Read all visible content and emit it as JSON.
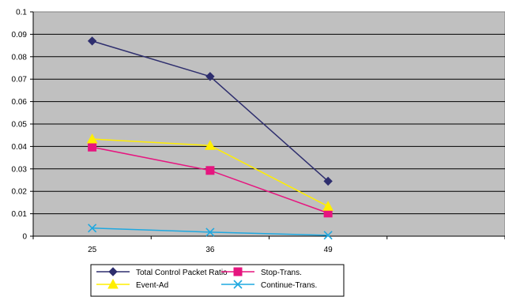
{
  "chart_data": {
    "type": "line",
    "categories": [
      "25",
      "36",
      "49"
    ],
    "ylim": [
      0,
      0.1
    ],
    "yticks": [
      "0",
      "0.01",
      "0.02",
      "0.03",
      "0.04",
      "0.05",
      "0.06",
      "0.07",
      "0.08",
      "0.09",
      "0.1"
    ],
    "grid": "horizontal",
    "plot_background": "#c0c0c0",
    "legend_position": "bottom",
    "series": [
      {
        "name": "Total Control Packet Ratio",
        "values": [
          0.087,
          0.0712,
          0.0245
        ],
        "color": "#2e2e6e",
        "marker": "diamond"
      },
      {
        "name": "Stop-Trans.",
        "values": [
          0.0397,
          0.0293,
          0.0103
        ],
        "color": "#e6157f",
        "marker": "square"
      },
      {
        "name": "Event-Ad",
        "values": [
          0.0433,
          0.0404,
          0.0133
        ],
        "color": "#ffee00",
        "marker": "triangle"
      },
      {
        "name": "Continue-Trans.",
        "values": [
          0.0036,
          0.0018,
          0.0004
        ],
        "color": "#1fa8e0",
        "marker": "x"
      }
    ]
  }
}
